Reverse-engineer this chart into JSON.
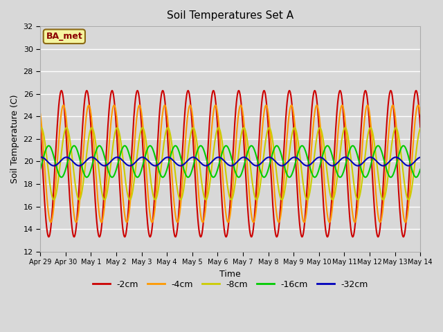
{
  "title": "Soil Temperatures Set A",
  "xlabel": "Time",
  "ylabel": "Soil Temperature (C)",
  "ylim": [
    12,
    32
  ],
  "yticks": [
    12,
    14,
    16,
    18,
    20,
    22,
    24,
    26,
    28,
    30,
    32
  ],
  "num_days": 15,
  "samples_per_day": 48,
  "annotation": "BA_met",
  "bg_color": "#d8d8d8",
  "plot_bg_color": "#d8d8d8",
  "series": [
    {
      "label": "-2cm",
      "color": "#cc0000",
      "amplitude": 6.5,
      "phase_days": 0.0,
      "mean": 19.8
    },
    {
      "label": "-4cm",
      "color": "#ff9900",
      "amplitude": 5.2,
      "phase_days": 0.08,
      "mean": 19.8
    },
    {
      "label": "-8cm",
      "color": "#cccc00",
      "amplitude": 3.2,
      "phase_days": 0.2,
      "mean": 19.8
    },
    {
      "label": "-16cm",
      "color": "#00cc00",
      "amplitude": 1.4,
      "phase_days": 0.5,
      "mean": 20.0
    },
    {
      "label": "-32cm",
      "color": "#0000bb",
      "amplitude": 0.38,
      "phase_days": 1.2,
      "mean": 20.0
    }
  ],
  "xtick_labels": [
    "Apr 29",
    "Apr 30",
    "May 1",
    "May 2",
    "May 3",
    "May 4",
    "May 5",
    "May 6",
    "May 7",
    "May 8",
    "May 9",
    "May 10",
    "May 11",
    "May 12",
    "May 13",
    "May 14"
  ],
  "linewidth": 1.5
}
